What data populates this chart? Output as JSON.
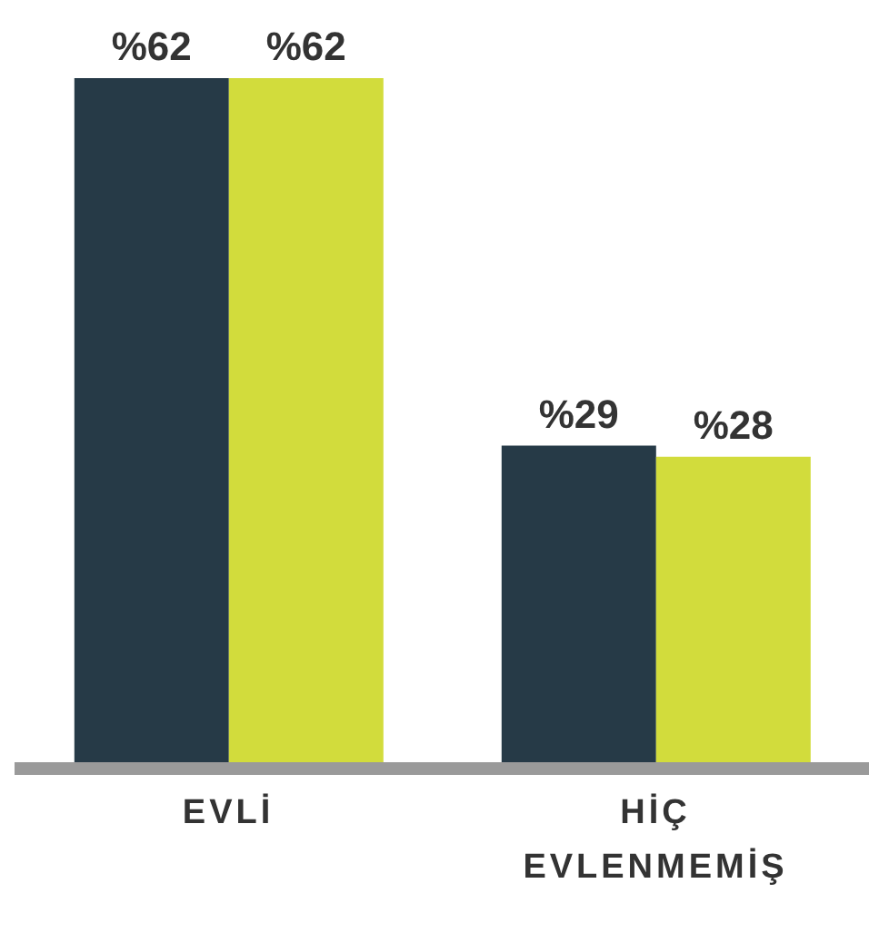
{
  "chart_data": {
    "type": "bar",
    "categories": [
      "EVLİ",
      "HİÇ EVLENMEMİŞ"
    ],
    "series": [
      {
        "color": "#263a47",
        "values": [
          62,
          29
        ],
        "value_labels": [
          "%62",
          "%29"
        ]
      },
      {
        "color": "#d2dc3c",
        "values": [
          62,
          28
        ],
        "value_labels": [
          "%62",
          "%28"
        ]
      }
    ]
  }
}
